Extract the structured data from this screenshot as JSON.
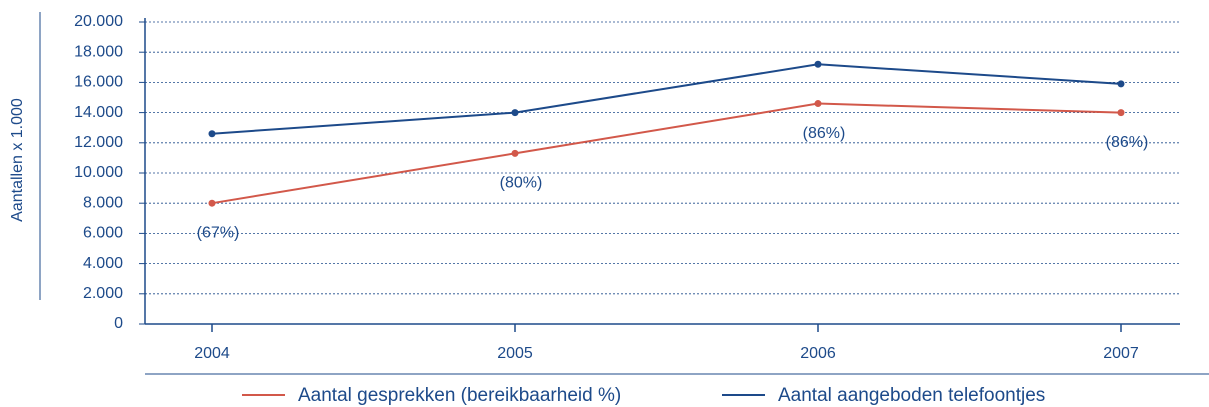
{
  "chart_data": {
    "type": "line",
    "y_label": "Aantallen x 1.000",
    "categories": [
      "2004",
      "2005",
      "2006",
      "2007"
    ],
    "series": [
      {
        "name": "Aantal gesprekken (bereikbaarheid %)",
        "color": "#d2584a",
        "values": [
          8000,
          11300,
          14600,
          14000
        ]
      },
      {
        "name": "Aantal aangeboden telefoontjes",
        "color": "#1d4a8a",
        "values": [
          12600,
          14000,
          17200,
          15900
        ]
      }
    ],
    "annotations": [
      "(67%)",
      "(80%)",
      "(86%)",
      "(86%)"
    ],
    "ylim": [
      0,
      20000
    ],
    "yticks": [
      0,
      {
        "value": 2000,
        "label": "2.000"
      },
      {
        "value": 4000,
        "label": "4.000"
      },
      {
        "value": 6000,
        "label": "6.000"
      },
      {
        "value": 8000,
        "label": "8.000"
      },
      {
        "value": 10000,
        "label": "10.000"
      },
      {
        "value": 12000,
        "label": "12.000"
      },
      {
        "value": 14000,
        "label": "14.000"
      },
      {
        "value": 16000,
        "label": "16.000"
      },
      {
        "value": 18000,
        "label": "18.000"
      },
      {
        "value": 20000,
        "label": "20.000"
      }
    ],
    "grid": true
  }
}
